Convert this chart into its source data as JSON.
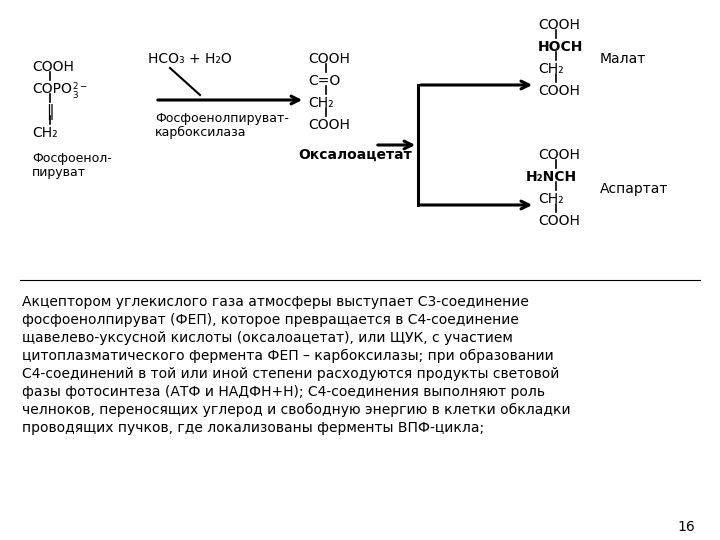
{
  "bg_color": "#ffffff",
  "text_color": "#000000",
  "paragraph_lines": [
    "Акцептором углекислого газа атмосферы выступает С3-соединение",
    "фосфоенолпируват (ФЕП), которое превращается в С4-соединение",
    "щавелево-уксусной кислоты (оксалоацетат), или ЩУК, с участием",
    "цитоплазматического фермента ФЕП – карбоксилазы; при образовании",
    "С4-соединений в той или иной степени расходуются продукты световой",
    "фазы фотосинтеза (АТФ и НАДФН+Н); С4-соединения выполняют роль",
    "челноков, переносящих углерод и свободную энергию в клетки обкладки",
    "проводящих пучков, где локализованы ферменты ВПФ-цикла;"
  ],
  "page_number": "16"
}
